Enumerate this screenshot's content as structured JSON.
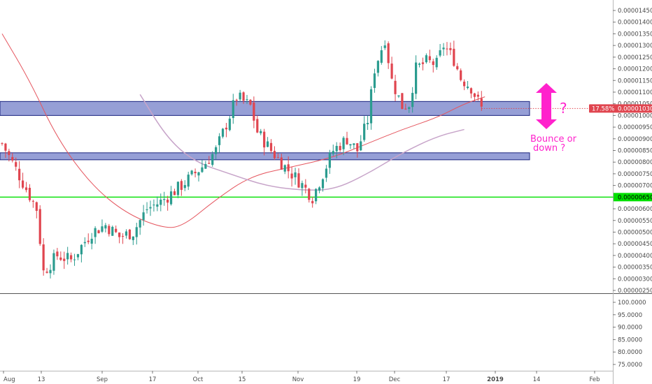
{
  "colors": {
    "up": "#2b9c8f",
    "down": "#e0454f",
    "zone_fill": "#3f51b5",
    "support_line": "#00e000",
    "ma_fast": "#e5565f",
    "ma_slow": "#c7a4c9",
    "annotation": "#ff22cc",
    "price_tag": "#e0454f"
  },
  "annotations": {
    "question_mark": "?",
    "bounce_line1": "Bounce or",
    "bounce_line2": "down ?"
  },
  "price_tag": {
    "percent": "17.58%",
    "price": "0.00001030"
  },
  "support_tag": "0.00000650",
  "chart_data": [
    {
      "type": "candlestick",
      "x_tick_labels": [
        "Aug",
        "13",
        "Sep",
        "17",
        "Oct",
        "15",
        "Nov",
        "19",
        "Dec",
        "17",
        "2019",
        "14",
        "Feb"
      ],
      "x_tick_bold": [
        "2019"
      ],
      "y_tick_labels": [
        "0.00001450",
        "0.00001400",
        "0.00001350",
        "0.00001300",
        "0.00001250",
        "0.00001200",
        "0.00001150",
        "0.00001100",
        "0.00001050",
        "0.00001000",
        "0.00000950",
        "0.00000900",
        "0.00000850",
        "0.00000800",
        "0.00000750",
        "0.00000700",
        "0.00000650",
        "0.00000600",
        "0.00000550",
        "0.00000500",
        "0.00000450",
        "0.00000400",
        "0.00000350",
        "0.00000300",
        "0.00000250"
      ],
      "ylim": [
        2.4e-06,
        1.47e-05
      ],
      "grid": false,
      "support_level": 6.5e-06,
      "current_price": 1.03e-05,
      "zones": [
        {
          "low": 1e-05,
          "high": 1.06e-05
        },
        {
          "low": 8.1e-06,
          "high": 8.4e-06
        }
      ],
      "close_anchors": [
        [
          0,
          8.8e-06
        ],
        [
          4,
          7.7e-06
        ],
        [
          10,
          6e-06
        ],
        [
          12,
          3.3e-06
        ],
        [
          16,
          4e-06
        ],
        [
          20,
          3.8e-06
        ],
        [
          26,
          5e-06
        ],
        [
          30,
          5.3e-06
        ],
        [
          34,
          4.8e-06
        ],
        [
          38,
          5e-06
        ],
        [
          42,
          6e-06
        ],
        [
          46,
          6.3e-06
        ],
        [
          52,
          7e-06
        ],
        [
          58,
          7.8e-06
        ],
        [
          62,
          8.5e-06
        ],
        [
          66,
          1e-05
        ],
        [
          68,
          1.08e-05
        ],
        [
          72,
          1.04e-05
        ],
        [
          74,
          9.3e-06
        ],
        [
          78,
          8.5e-06
        ],
        [
          82,
          7.8e-06
        ],
        [
          86,
          7.2e-06
        ],
        [
          90,
          6.5e-06
        ],
        [
          93,
          7.5e-06
        ],
        [
          96,
          8.5e-06
        ],
        [
          100,
          9e-06
        ],
        [
          103,
          8.5e-06
        ],
        [
          106,
          9.8e-06
        ],
        [
          108,
          1.2e-05
        ],
        [
          111,
          1.33e-05
        ],
        [
          113,
          1.15e-05
        ],
        [
          116,
          1.04e-05
        ],
        [
          118,
          1.05e-05
        ],
        [
          120,
          1.2e-05
        ],
        [
          123,
          1.23e-05
        ],
        [
          126,
          1.22e-05
        ],
        [
          128,
          1.3e-05
        ],
        [
          131,
          1.24e-05
        ],
        [
          133,
          1.16e-05
        ],
        [
          136,
          1.12e-05
        ],
        [
          139,
          1.03e-05
        ]
      ],
      "ma_fast_points": [
        [
          0,
          1.35e-05
        ],
        [
          8,
          1.15e-05
        ],
        [
          16,
          9e-06
        ],
        [
          26,
          7e-06
        ],
        [
          36,
          5.8e-06
        ],
        [
          46,
          5.2e-06
        ],
        [
          52,
          5.2e-06
        ],
        [
          62,
          6.4e-06
        ],
        [
          72,
          7.4e-06
        ],
        [
          84,
          7.8e-06
        ],
        [
          96,
          8.2e-06
        ],
        [
          106,
          8.8e-06
        ],
        [
          116,
          9.4e-06
        ],
        [
          126,
          9.9e-06
        ],
        [
          134,
          1.05e-05
        ],
        [
          140,
          1.08e-05
        ]
      ],
      "ma_slow_points": [
        [
          40,
          1.09e-05
        ],
        [
          48,
          9e-06
        ],
        [
          56,
          8e-06
        ],
        [
          66,
          7.5e-06
        ],
        [
          76,
          7e-06
        ],
        [
          86,
          6.8e-06
        ],
        [
          96,
          6.8e-06
        ],
        [
          106,
          7.5e-06
        ],
        [
          116,
          8.4e-06
        ],
        [
          126,
          9.1e-06
        ],
        [
          134,
          9.4e-06
        ]
      ],
      "indicator": {
        "y_tick_labels": [
          "100.0000",
          "95.0000",
          "90.0000",
          "85.0000",
          "80.0000",
          "75.0000"
        ],
        "ylim": [
          72,
          102
        ]
      }
    }
  ]
}
